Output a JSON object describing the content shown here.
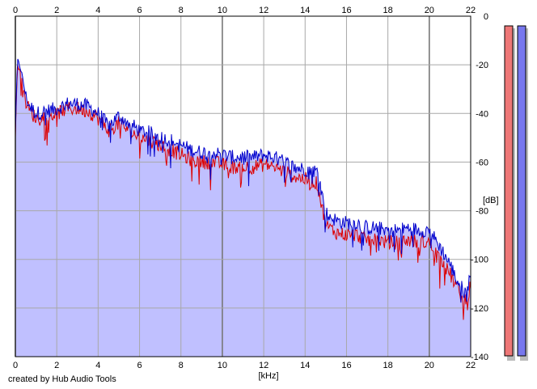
{
  "chart_data": {
    "type": "area",
    "title": "",
    "xlabel": "[kHz]",
    "ylabel": "[dB]",
    "xlim": [
      0,
      22
    ],
    "ylim": [
      -140,
      0
    ],
    "x_ticks": [
      0,
      2,
      4,
      6,
      8,
      10,
      12,
      14,
      16,
      18,
      20,
      22
    ],
    "y_ticks": [
      0,
      -20,
      -40,
      -60,
      -80,
      -100,
      -120,
      -140
    ],
    "grid": true,
    "series": [
      {
        "color": "#0000cc",
        "x": [
          0,
          0.1,
          0.2,
          0.3,
          0.4,
          0.5,
          0.7,
          1,
          1.5,
          2,
          2.5,
          3,
          3.5,
          4,
          4.5,
          5,
          5.5,
          6,
          6.5,
          7,
          7.5,
          8,
          8.5,
          9,
          9.5,
          10,
          10.5,
          11,
          11.5,
          12,
          12.5,
          13,
          13.5,
          14,
          14.3,
          14.6,
          14.8,
          15,
          15.5,
          16,
          16.5,
          17,
          17.5,
          18,
          18.5,
          19,
          19.5,
          20,
          20.3,
          20.6,
          21,
          21.3,
          21.6,
          21.8,
          22
        ],
        "y": [
          -48,
          -18,
          -20,
          -23,
          -28,
          -33,
          -37,
          -40,
          -39,
          -38,
          -36,
          -36,
          -37,
          -40,
          -45,
          -41,
          -44,
          -47,
          -48,
          -50,
          -51,
          -53,
          -55,
          -56,
          -56,
          -57,
          -58,
          -58,
          -58,
          -57,
          -58,
          -60,
          -62,
          -63,
          -63,
          -64,
          -72,
          -81,
          -84,
          -85,
          -85,
          -87,
          -87,
          -88,
          -88,
          -87,
          -88,
          -88,
          -92,
          -96,
          -102,
          -108,
          -112,
          -114,
          -104
        ]
      },
      {
        "color": "#dd0000",
        "x": [
          0,
          0.1,
          0.2,
          0.3,
          0.4,
          0.5,
          0.7,
          1,
          1.5,
          2,
          2.5,
          3,
          3.5,
          4,
          4.5,
          5,
          5.5,
          6,
          6.5,
          7,
          7.5,
          8,
          8.5,
          9,
          9.5,
          10,
          10.5,
          11,
          11.5,
          12,
          12.5,
          13,
          13.5,
          14,
          14.3,
          14.6,
          14.8,
          15,
          15.5,
          16,
          16.5,
          17,
          17.5,
          18,
          18.5,
          19,
          19.5,
          20,
          20.3,
          20.6,
          21,
          21.3,
          21.6,
          21.8,
          22
        ],
        "y": [
          -50,
          -20,
          -22,
          -25,
          -30,
          -35,
          -39,
          -42,
          -41,
          -40,
          -38,
          -38,
          -39,
          -42,
          -47,
          -44,
          -47,
          -50,
          -51,
          -53,
          -55,
          -57,
          -59,
          -60,
          -60,
          -61,
          -62,
          -62,
          -62,
          -61,
          -62,
          -64,
          -66,
          -67,
          -68,
          -69,
          -78,
          -86,
          -89,
          -90,
          -90,
          -92,
          -92,
          -93,
          -93,
          -92,
          -93,
          -93,
          -97,
          -101,
          -106,
          -111,
          -116,
          -118,
          -110
        ]
      }
    ],
    "meters": [
      {
        "color": "#ee7777"
      },
      {
        "color": "#7777ee"
      }
    ]
  },
  "footer": {
    "credit": "created by Hub Audio Tools"
  }
}
